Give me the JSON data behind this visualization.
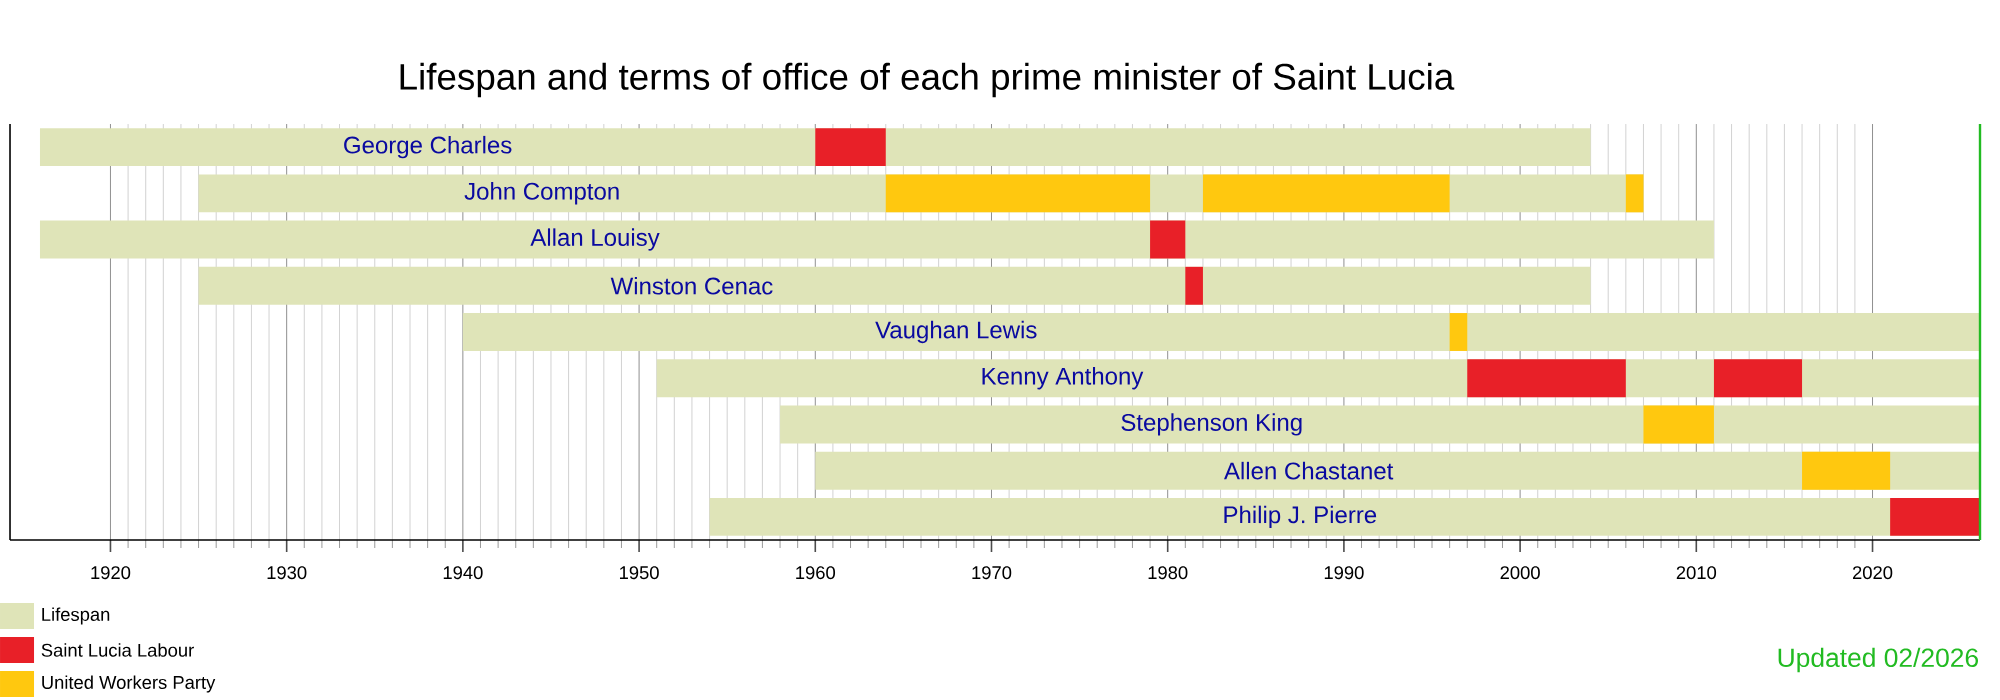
{
  "chart_data": {
    "type": "bar",
    "orientation": "horizontal",
    "title": "Lifespan and terms of office of each prime minister of Saint Lucia",
    "categories": [
      "George Charles",
      "John Compton",
      "Allan Louisy",
      "Winston Cenac",
      "Vaughan Lewis",
      "Kenny Anthony",
      "Stephenson King",
      "Allen Chastanet",
      "Philip J. Pierre"
    ],
    "series": [
      {
        "name": "Lifespan",
        "color": "#dfe4b8",
        "base": [
          1916,
          1925,
          1916,
          1925,
          1940,
          1951,
          1958,
          1960,
          1954
        ],
        "values": [
          88,
          82,
          95,
          79,
          86.1,
          75.1,
          68.1,
          66.1,
          72.1
        ]
      },
      {
        "name": "Saint Lucia Labour",
        "color": "#e82028",
        "base": [
          1960,
          null,
          1979,
          1981,
          null,
          1997,
          null,
          null,
          2021
        ],
        "values": [
          4,
          null,
          2,
          1,
          null,
          9,
          null,
          null,
          5.1
        ]
      },
      {
        "color": "#e82028",
        "base": [
          null,
          null,
          null,
          null,
          null,
          2011,
          null,
          null,
          null
        ],
        "values": [
          null,
          null,
          null,
          null,
          null,
          5,
          null,
          null,
          null
        ]
      },
      {
        "name": "United Workers Party",
        "color": "#ffc80f",
        "base": [
          null,
          1964,
          null,
          null,
          1996,
          null,
          2007,
          2016,
          null
        ],
        "values": [
          null,
          15,
          null,
          null,
          1,
          null,
          4,
          5,
          null
        ]
      },
      {
        "color": "#ffc80f",
        "base": [
          null,
          1982,
          null,
          null,
          null,
          null,
          null,
          null,
          null
        ],
        "values": [
          null,
          14,
          null,
          null,
          null,
          null,
          null,
          null,
          null
        ]
      },
      {
        "color": "#ffc80f",
        "base": [
          null,
          2006,
          null,
          null,
          null,
          null,
          null,
          null,
          null
        ],
        "values": [
          null,
          1,
          null,
          null,
          null,
          null,
          null,
          null,
          null
        ]
      }
    ],
    "xlim": [
      1914.3,
      2026.1
    ],
    "xticks": [
      1920,
      1930,
      1940,
      1950,
      1960,
      1970,
      1980,
      1990,
      2000,
      2010,
      2020
    ],
    "grid": "x",
    "legend": "bottom left",
    "ref_lines": [
      {
        "axis": "x",
        "value": 2026.1,
        "color": "#22bb22"
      }
    ],
    "annotations": [
      "Updated 02/2026"
    ]
  }
}
